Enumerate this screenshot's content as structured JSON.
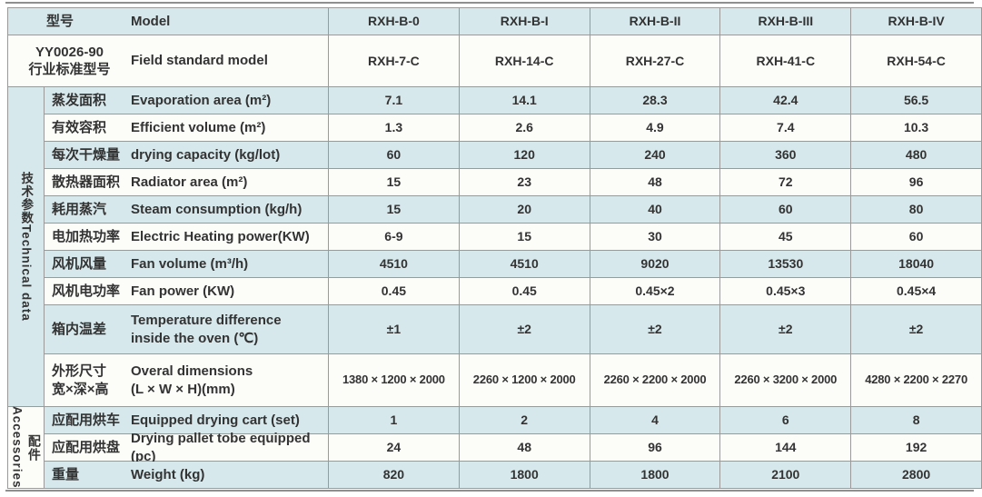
{
  "header": {
    "cn": "型号",
    "en": "Model",
    "models": [
      "RXH-B-0",
      "RXH-B-I",
      "RXH-B-II",
      "RXH-B-III",
      "RXH-B-IV"
    ]
  },
  "standard": {
    "cn": "YY0026-90\n行业标准型号",
    "en": "Field standard model",
    "values": [
      "RXH-7-C",
      "RXH-14-C",
      "RXH-27-C",
      "RXH-41-C",
      "RXH-54-C"
    ]
  },
  "sections": {
    "technical": {
      "label": "技术参数Technical data"
    },
    "accessories": {
      "cn": "配件",
      "en": "Accessories"
    }
  },
  "tech": [
    {
      "cn": "蒸发面积",
      "en": "Evaporation area (m²)",
      "values": [
        "7.1",
        "14.1",
        "28.3",
        "42.4",
        "56.5"
      ]
    },
    {
      "cn": "有效容积",
      "en": "Efficient volume (m²)",
      "values": [
        "1.3",
        "2.6",
        "4.9",
        "7.4",
        "10.3"
      ]
    },
    {
      "cn": "每次干燥量",
      "en": "drying capacity (kg/lot)",
      "values": [
        "60",
        "120",
        "240",
        "360",
        "480"
      ]
    },
    {
      "cn": "散热器面积",
      "en": "Radiator area (m²)",
      "values": [
        "15",
        "23",
        "48",
        "72",
        "96"
      ]
    },
    {
      "cn": "耗用蒸汽",
      "en": "Steam consumption (kg/h)",
      "values": [
        "15",
        "20",
        "40",
        "60",
        "80"
      ]
    },
    {
      "cn": "电加热功率",
      "en": "Electric Heating power(KW)",
      "values": [
        "6-9",
        "15",
        "30",
        "45",
        "60"
      ]
    },
    {
      "cn": "风机风量",
      "en": "Fan volume (m³/h)",
      "values": [
        "4510",
        "4510",
        "9020",
        "13530",
        "18040"
      ]
    },
    {
      "cn": "风机电功率",
      "en": "Fan power (KW)",
      "values": [
        "0.45",
        "0.45",
        "0.45×2",
        "0.45×3",
        "0.45×4"
      ]
    },
    {
      "cn": "箱内温差",
      "en": "Temperature difference\ninside the oven (℃)",
      "values": [
        "±1",
        "±2",
        "±2",
        "±2",
        "±2"
      ]
    },
    {
      "cn": "外形尺寸\n宽×深×高",
      "en": "Overal dimensions\n(L × W × H)(mm)",
      "values": [
        "1380 × 1200 × 2000",
        "2260 × 1200 × 2000",
        "2260 × 2200 × 2000",
        "2260 × 3200 × 2000",
        "4280 × 2200 × 2270"
      ]
    }
  ],
  "acc": [
    {
      "cn": "应配用烘车",
      "en": "Equipped drying cart (set)",
      "values": [
        "1",
        "2",
        "4",
        "6",
        "8"
      ]
    },
    {
      "cn": "应配用烘盘",
      "en": "Drying pallet tobe equipped (pc)",
      "values": [
        "24",
        "48",
        "96",
        "144",
        "192"
      ]
    },
    {
      "cn": "重量",
      "en": "Weight (kg)",
      "values": [
        "820",
        "1800",
        "1800",
        "2100",
        "2800"
      ]
    }
  ],
  "colors": {
    "row_blue": "#d7e8ec",
    "row_white": "#fcfcf9",
    "border": "#9a9a9a",
    "text": "#333333"
  }
}
